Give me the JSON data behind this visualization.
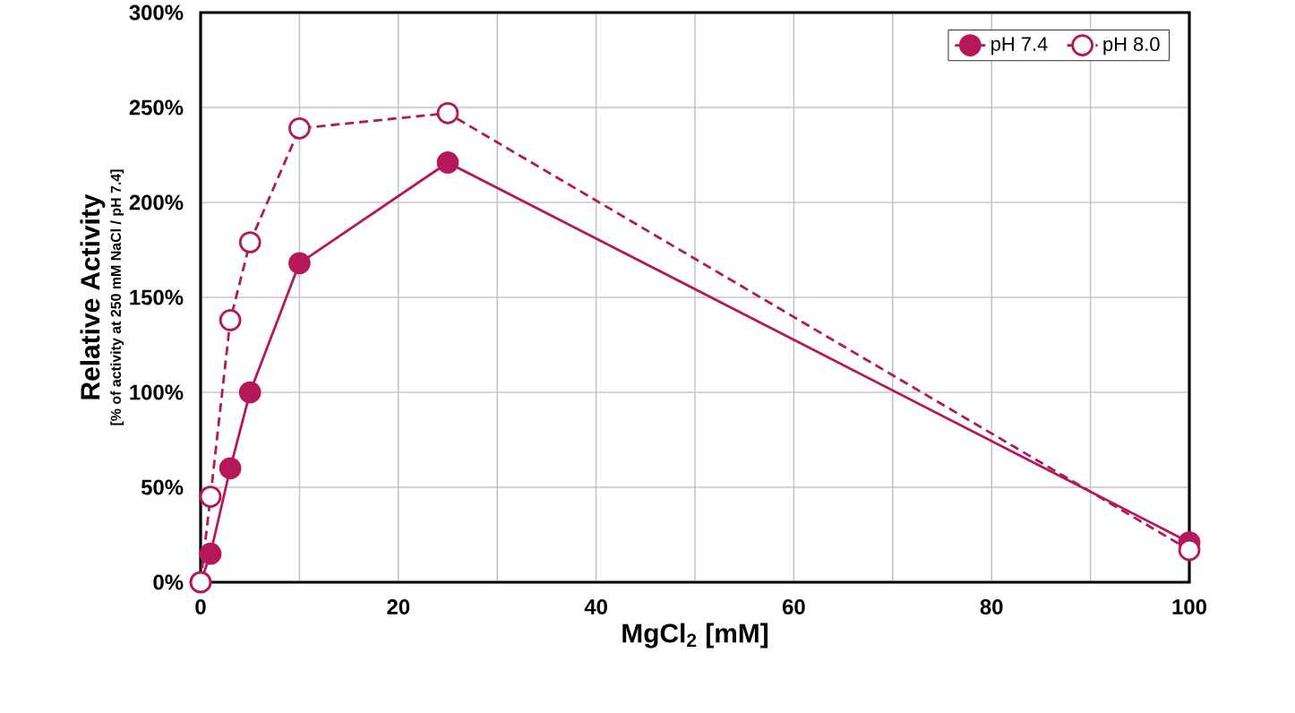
{
  "chart_data": {
    "type": "line",
    "xlabel": "MgCl$_{2}$ [mM]",
    "ylabel": "Relative Activity",
    "annotations": [
      "[% of activity at 250 mM NaCl / pH 7.4]"
    ],
    "x": [
      0,
      1,
      3,
      5,
      10,
      25,
      100
    ],
    "series": [
      {
        "name": "pH 7.4",
        "color": "#b5185a",
        "line_style": "solid",
        "values": [
          0,
          15,
          60,
          100,
          168,
          221,
          21
        ]
      },
      {
        "name": "pH 8.0",
        "color": "#b5185a",
        "line_style": "dashed",
        "values": [
          0,
          45,
          138,
          179,
          239,
          247,
          17
        ]
      }
    ],
    "xlim": [
      0,
      100
    ],
    "ylim": [
      0,
      300
    ],
    "xticks": [
      0,
      {
        "value": 10,
        "label": null
      },
      20,
      {
        "value": 30,
        "label": null
      },
      40,
      {
        "value": 50,
        "label": null
      },
      60,
      {
        "value": 70,
        "label": null
      },
      80,
      {
        "value": 90,
        "label": null
      },
      100
    ],
    "yticks": [
      {
        "value": 0,
        "label": "0%"
      },
      {
        "value": 50,
        "label": "50%"
      },
      {
        "value": 100,
        "label": "100%"
      },
      {
        "value": 150,
        "label": "150%"
      },
      {
        "value": 200,
        "label": "200%"
      },
      {
        "value": 250,
        "label": "250%"
      },
      {
        "value": 300,
        "label": "300%"
      }
    ],
    "grid": true,
    "legend": "top right",
    "marker": "circle"
  }
}
